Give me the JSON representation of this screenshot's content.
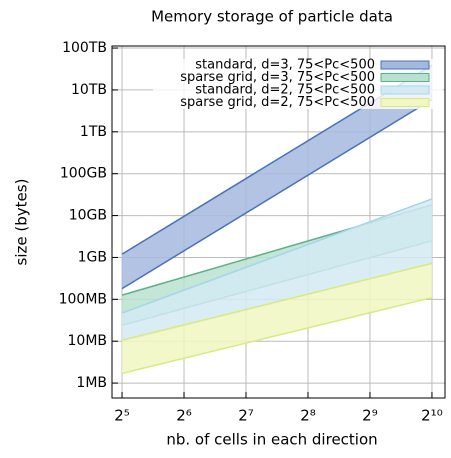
{
  "chart_data": {
    "type": "band",
    "title": "Memory storage of particle data",
    "xlabel": "nb. of cells in each direction",
    "ylabel": "size (bytes)",
    "log_x": true,
    "log_y": true,
    "grid": true,
    "legend_position": "upper-right",
    "x": [
      32,
      1024
    ],
    "xlim": [
      28.6,
      1185
    ],
    "ylim": [
      440000,
      112000000000000
    ],
    "xticks": [
      {
        "value": 32,
        "label": "2⁵"
      },
      {
        "value": 64,
        "label": "2⁶"
      },
      {
        "value": 128,
        "label": "2⁷"
      },
      {
        "value": 256,
        "label": "2⁸"
      },
      {
        "value": 512,
        "label": "2⁹"
      },
      {
        "value": 1024,
        "label": "2¹⁰"
      }
    ],
    "yticks": [
      {
        "value": 1000000,
        "label": "1MB"
      },
      {
        "value": 10000000,
        "label": "10MB"
      },
      {
        "value": 100000000,
        "label": "100MB"
      },
      {
        "value": 1000000000,
        "label": "1GB"
      },
      {
        "value": 10000000000,
        "label": "10GB"
      },
      {
        "value": 100000000000,
        "label": "100GB"
      },
      {
        "value": 1000000000000,
        "label": "1TB"
      },
      {
        "value": 10000000000000,
        "label": "10TB"
      },
      {
        "value": 100000000000000,
        "label": "100TB"
      }
    ],
    "series": [
      {
        "name": "standard, d=3, 75<Pc<500",
        "color": "#a4b9de",
        "line_color": "#4a72b8",
        "lower": [
          180000000,
          5900000000000
        ],
        "upper": [
          1200000000,
          39000000000000
        ]
      },
      {
        "name": "sparse grid, d=3, 75<Pc<500",
        "color": "#b8e2d0",
        "line_color": "#5cb08a",
        "lower": [
          24000000,
          2500000000
        ],
        "upper": [
          126000000,
          18000000000
        ]
      },
      {
        "name": "standard, d=2, 75<Pc<500",
        "color": "#d3eaf3",
        "line_color": "#a8d4e8",
        "lower": [
          10000000,
          720000000
        ],
        "upper": [
          47000000,
          25000000000
        ]
      },
      {
        "name": "sparse grid, d=2, 75<Pc<500",
        "color": "#f1f7c2",
        "line_color": "#d9ea80",
        "lower": [
          1700000,
          110000000
        ],
        "upper": [
          10600000,
          720000000
        ]
      }
    ]
  }
}
